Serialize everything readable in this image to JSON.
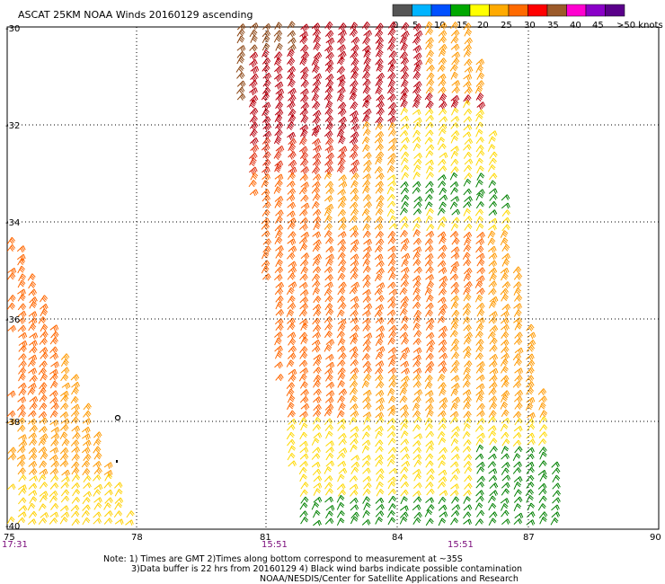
{
  "title": "ASCAT 25KM NOAA Winds 20160129 ascending",
  "legend": {
    "colors": [
      "#555555",
      "#00b4ff",
      "#0050ff",
      "#00a800",
      "#ffff00",
      "#ffaa00",
      "#ff6a00",
      "#ff0000",
      "#9b5a2a",
      "#ff00d0",
      "#8a00c8",
      "#5a008a"
    ],
    "labels": [
      "0",
      "5",
      "10",
      "15",
      "20",
      "25",
      "30",
      "35",
      "40",
      "45",
      ">50 knots"
    ]
  },
  "lat_labels": [
    "-30",
    "-32",
    "-34",
    "-36",
    "-38",
    "-40"
  ],
  "lon_labels": [
    "75",
    "78",
    "81",
    "84",
    "87",
    "90"
  ],
  "time_labels": [
    "17:31",
    "15:51",
    "15:51"
  ],
  "notes": [
    "Note: 1) Times are GMT 2)Times along bottom correspond to measurement at ~35S",
    "3)Data buffer is 22 hrs from 20160129 4) Black wind barbs indicate possible contamination",
    "NOAA/NESDIS/Center for Satellite Applications and Research"
  ],
  "swaths": {
    "east": {
      "colors": {
        "dark_red": "#b8000f",
        "red": "#e03010",
        "brown": "#8b4513",
        "orange": "#ff6600",
        "amber": "#ff9900",
        "yellow": "#ffd800",
        "green": "#008000"
      }
    },
    "west": {
      "colors": {
        "orange": "#ff6600",
        "amber": "#ff9900",
        "yellow": "#ffd000"
      }
    }
  }
}
